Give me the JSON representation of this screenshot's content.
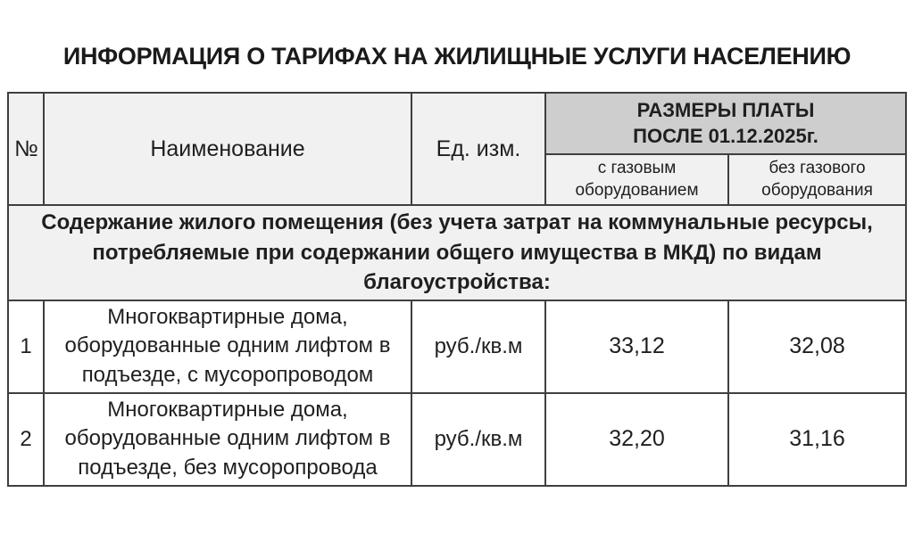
{
  "page": {
    "title": "ИНФОРМАЦИЯ О ТАРИФАХ НА ЖИЛИЩНЫЕ УСЛУГИ НАСЕЛЕНИЮ"
  },
  "table": {
    "columns": {
      "num": "№",
      "name": "Наименование",
      "unit": "Ед. изм.",
      "rates_header": {
        "lines": [
          "РАЗМЕРЫ ПЛАТЫ",
          "ПОСЛЕ 01.12.2025г."
        ]
      },
      "with_gas": "с газовым оборудованием",
      "without_gas": "без газового оборудования"
    },
    "section": {
      "lines": [
        "Содержание жилого помещения (без учета затрат на коммунальные ресурсы,",
        "потребляемые при содержании общего имущества в МКД) по видам",
        "благоустройства:"
      ]
    },
    "rows": [
      {
        "num": "1",
        "name": "Многоквартирные дома, оборудованные одним лифтом в подъезде, с мусоропроводом",
        "unit": "руб./кв.м",
        "with_gas": "33,12",
        "without_gas": "32,08"
      },
      {
        "num": "2",
        "name": "Многоквартирные дома, оборудованные одним лифтом в подъезде, без мусоропровода",
        "unit": "руб./кв.м",
        "with_gas": "32,20",
        "without_gas": "31,16"
      }
    ],
    "colors": {
      "header_bg": "#f1f1f1",
      "rates_header_bg": "#cecece",
      "section_bg": "#f1f1f1",
      "border": "#3f3f3f",
      "text": "#1f1f1f"
    }
  }
}
